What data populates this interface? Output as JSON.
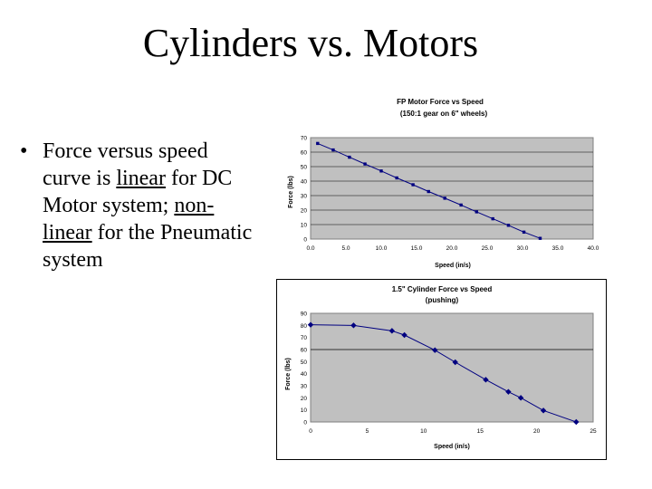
{
  "slide": {
    "title": "Cylinders vs. Motors",
    "bullet": {
      "symbol": "•",
      "part1": "Force versus speed curve is ",
      "linear": "linear",
      "part2": " for DC Motor system; ",
      "nonlinear": "non-linear",
      "part3": " for the Pneumatic system"
    }
  },
  "chart_data": [
    {
      "type": "line",
      "title": "FP Motor Force vs Speed",
      "subtitle": "(150:1 gear on 6\" wheels)",
      "xlabel": "Speed (in/s)",
      "ylabel": "Force (lbs)",
      "xlim": [
        0,
        40
      ],
      "ylim": [
        0,
        70
      ],
      "xticks": [
        "0.0",
        "5.0",
        "10.0",
        "15.0",
        "20.0",
        "25.0",
        "30.0",
        "35.0",
        "40.0"
      ],
      "yticks": [
        "0",
        "10",
        "20",
        "30",
        "40",
        "50",
        "60",
        "70"
      ],
      "grid": true,
      "series": [
        {
          "color": "#000080",
          "points": [
            [
              1.0,
              66
            ],
            [
              3.2,
              61.5
            ],
            [
              5.5,
              56.5
            ],
            [
              7.7,
              51.8
            ],
            [
              10.0,
              47.0
            ],
            [
              12.2,
              42.2
            ],
            [
              14.5,
              37.5
            ],
            [
              16.7,
              32.8
            ],
            [
              19.0,
              28.2
            ],
            [
              21.3,
              23.5
            ],
            [
              23.5,
              18.8
            ],
            [
              25.8,
              14.0
            ],
            [
              28.0,
              9.5
            ],
            [
              30.2,
              4.8
            ],
            [
              32.5,
              0.5
            ]
          ]
        }
      ],
      "colors": {
        "plot_bg": "#c0c0c0",
        "marker": "#000080"
      }
    },
    {
      "type": "line",
      "title": "1.5\" Cylinder Force vs Speed",
      "subtitle": "(pushing)",
      "xlabel": "Speed (in/s)",
      "ylabel": "Force (lbs)",
      "xlim": [
        0,
        25
      ],
      "ylim": [
        0,
        90
      ],
      "xticks": [
        "0",
        "5",
        "10",
        "15",
        "20",
        "25"
      ],
      "yticks": [
        "0",
        "10",
        "20",
        "30",
        "40",
        "50",
        "60",
        "70",
        "80",
        "90"
      ],
      "grid": false,
      "reference_line_y": 60,
      "series": [
        {
          "color": "#000080",
          "points": [
            [
              0,
              80.5
            ],
            [
              3.8,
              80
            ],
            [
              7.2,
              75.5
            ],
            [
              8.3,
              72
            ],
            [
              11.0,
              59.5
            ],
            [
              12.8,
              49.5
            ],
            [
              15.5,
              35
            ],
            [
              17.5,
              25
            ],
            [
              18.6,
              20
            ],
            [
              20.6,
              9.5
            ],
            [
              23.5,
              0
            ]
          ]
        }
      ],
      "colors": {
        "plot_bg": "#c0c0c0",
        "marker": "#000080"
      }
    }
  ]
}
